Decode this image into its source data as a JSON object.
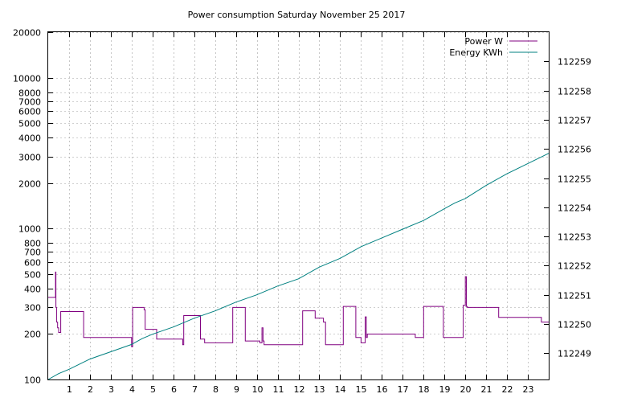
{
  "chart_data": {
    "type": "line",
    "title": "Power consumption Saturday November 25 2017",
    "grid": true,
    "legend_position": "top-right",
    "x": {
      "range": [
        0,
        24
      ],
      "ticks": [
        1,
        2,
        3,
        4,
        5,
        6,
        7,
        8,
        9,
        10,
        11,
        12,
        13,
        14,
        15,
        16,
        17,
        18,
        19,
        20,
        21,
        22,
        23
      ],
      "tick_labels": [
        "1",
        "2",
        "3",
        "4",
        "5",
        "6",
        "7",
        "8",
        "9",
        "10",
        "11",
        "12",
        "13",
        "14",
        "15",
        "16",
        "17",
        "18",
        "19",
        "20",
        "21",
        "22",
        "23"
      ]
    },
    "y_left": {
      "scale": "log",
      "range": [
        100,
        20000
      ],
      "ticks": [
        100,
        200,
        300,
        400,
        500,
        600,
        700,
        800,
        1000,
        2000,
        3000,
        4000,
        5000,
        6000,
        7000,
        8000,
        10000,
        20000
      ],
      "tick_labels": [
        "100",
        "200",
        "300",
        "400",
        "500",
        "600",
        "700",
        "800",
        "1000",
        "2000",
        "3000",
        "4000",
        "5000",
        "6000",
        "7000",
        "8000",
        "10000",
        "20000"
      ]
    },
    "y_right": {
      "scale": "linear",
      "range": [
        112248.1,
        112260.0
      ],
      "ticks": [
        112249,
        112250,
        112251,
        112252,
        112253,
        112254,
        112255,
        112256,
        112257,
        112258,
        112259
      ],
      "tick_labels": [
        "112249",
        "112250",
        "112251",
        "112252",
        "112253",
        "112254",
        "112255",
        "112256",
        "112257",
        "112258",
        "112259"
      ]
    },
    "series": [
      {
        "name": "Power W",
        "color": "#800080",
        "axis": "left",
        "step": true,
        "x": [
          0,
          0.35,
          0.37,
          0.4,
          0.45,
          0.5,
          0.6,
          1.65,
          1.7,
          4.0,
          4.05,
          4.6,
          4.65,
          5.2,
          6.45,
          6.5,
          7.3,
          7.5,
          7.7,
          8.85,
          9.45,
          10.15,
          10.25,
          10.3,
          10.35,
          12.2,
          12.8,
          13.2,
          13.3,
          14.15,
          14.75,
          15.0,
          15.2,
          15.25,
          15.3,
          16.5,
          17.6,
          18.0,
          18.95,
          19.9,
          20.0,
          20.05,
          20.1,
          21.6,
          23.65,
          23.98
        ],
        "y": [
          350,
          515,
          300,
          240,
          220,
          205,
          282,
          282,
          190,
          165,
          300,
          290,
          215,
          185,
          170,
          265,
          185,
          175,
          175,
          300,
          180,
          175,
          220,
          180,
          170,
          285,
          255,
          240,
          170,
          305,
          190,
          175,
          260,
          190,
          200,
          200,
          190,
          305,
          190,
          310,
          480,
          305,
          300,
          258,
          240,
          240
        ]
      },
      {
        "name": "Energy KWh",
        "color": "#008080",
        "axis": "right",
        "step": false,
        "x": [
          0,
          0.5,
          1,
          2,
          3,
          4,
          4.5,
          5,
          6,
          7,
          8,
          9,
          10,
          11,
          12,
          13,
          14,
          15,
          16,
          17,
          18,
          19,
          19.5,
          20,
          21,
          22,
          23,
          24
        ],
        "y": [
          112248.1,
          112248.3,
          112248.45,
          112248.8,
          112249.05,
          112249.3,
          112249.5,
          112249.65,
          112249.9,
          112250.2,
          112250.45,
          112250.75,
          112251.0,
          112251.3,
          112251.55,
          112251.95,
          112252.25,
          112252.65,
          112252.95,
          112253.25,
          112253.55,
          112253.95,
          112254.15,
          112254.3,
          112254.75,
          112255.15,
          112255.5,
          112255.85
        ]
      }
    ]
  }
}
